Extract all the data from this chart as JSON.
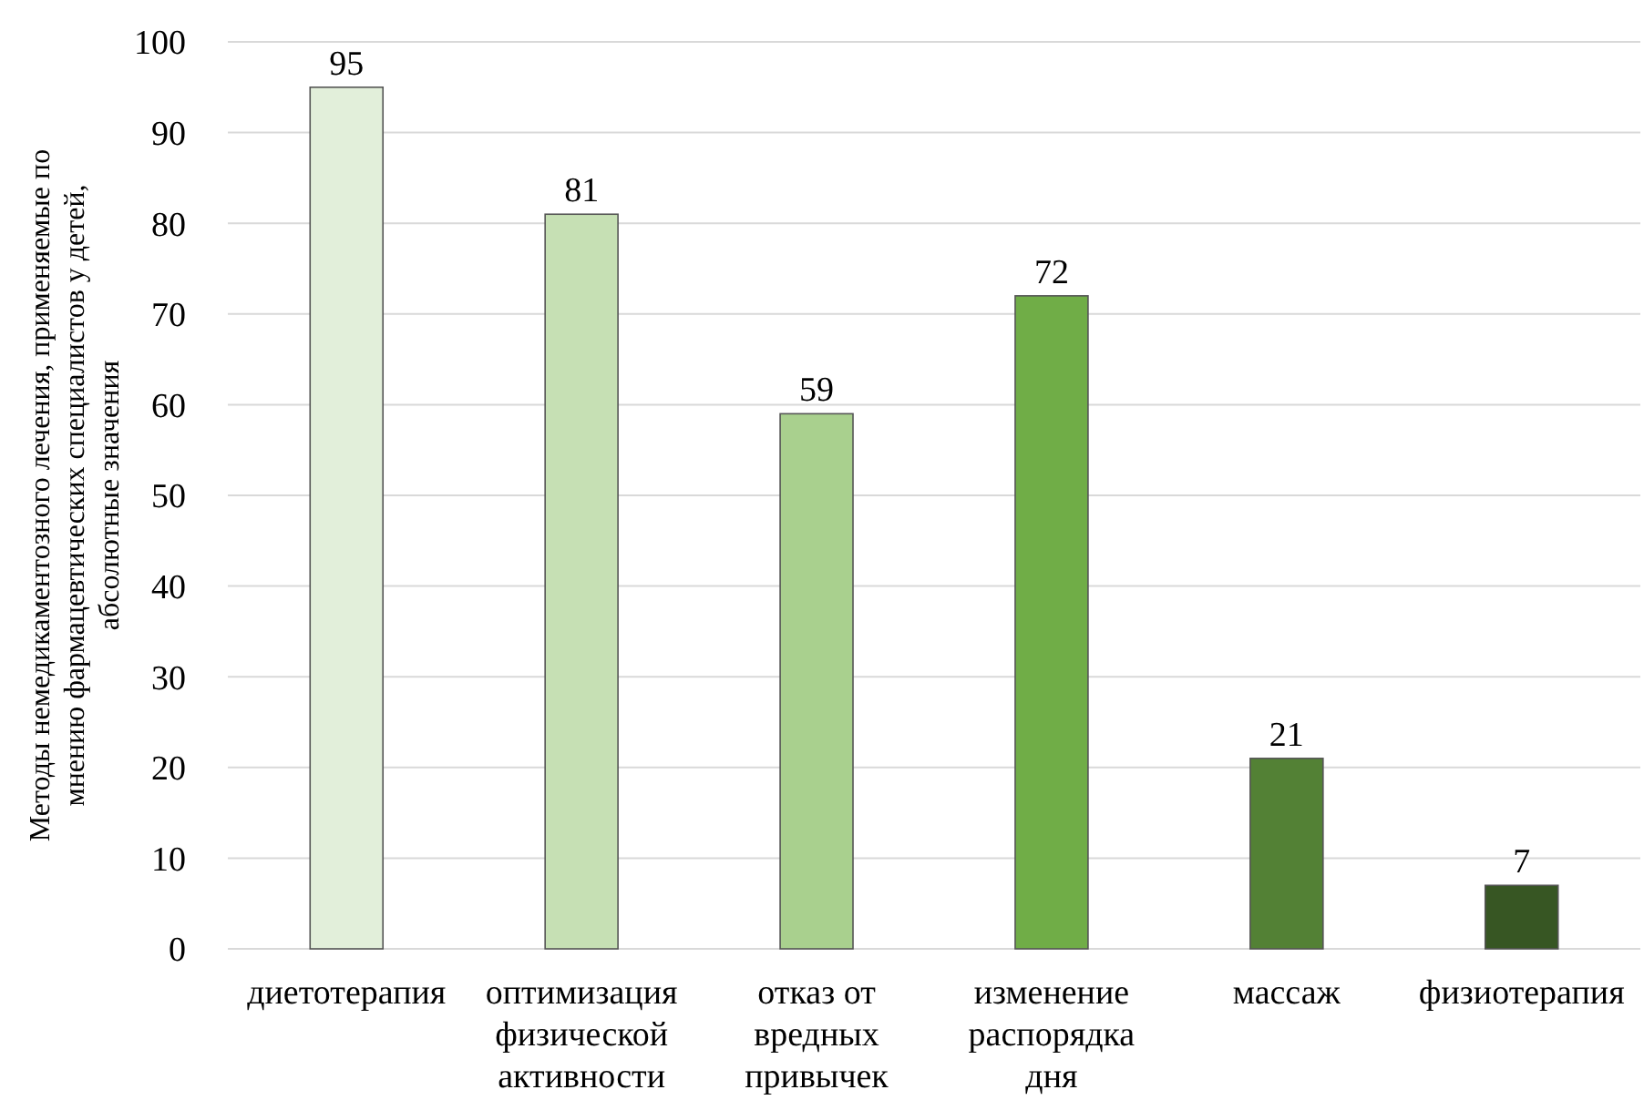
{
  "chart_data": {
    "type": "bar",
    "ylabel": "Методы немедикаментозного лечения, применяемые по мнению фармацевтических специалистов у детей, абсолютные значения",
    "categories": [
      "диетотерапия",
      "оптимизация физической активности",
      "отказ от вредных привычек",
      "изменение распорядка дня",
      "массаж",
      "физиотерапия"
    ],
    "values": [
      95,
      81,
      59,
      72,
      21,
      7
    ],
    "colors": [
      "#e2efda",
      "#c6e0b4",
      "#a9d08e",
      "#70ad47",
      "#538135",
      "#375623"
    ],
    "ylim": [
      0,
      100
    ],
    "yticks": [
      0,
      10,
      20,
      30,
      40,
      50,
      60,
      70,
      80,
      90,
      100
    ],
    "grid": "y",
    "data_labels": true
  }
}
